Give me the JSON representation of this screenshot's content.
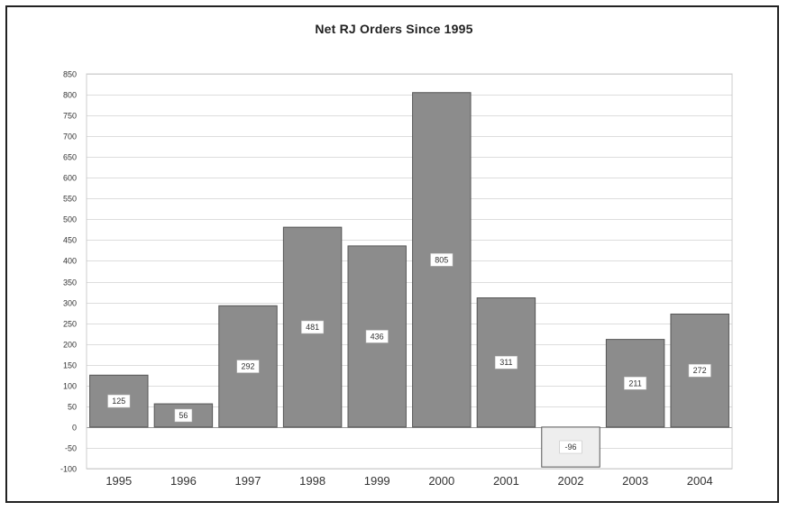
{
  "chart_data": {
    "type": "bar",
    "title": "Net RJ Orders Since 1995",
    "xlabel": "",
    "ylabel": "",
    "categories": [
      "1995",
      "1996",
      "1997",
      "1998",
      "1999",
      "2000",
      "2001",
      "2002",
      "2003",
      "2004"
    ],
    "values": [
      125,
      56,
      292,
      481,
      436,
      805,
      311,
      -96,
      211,
      272
    ],
    "data_labels": [
      "125",
      "56",
      "292",
      "481",
      "436",
      "805",
      "311",
      "-96",
      "211",
      "272"
    ],
    "ylim": [
      -100,
      850
    ],
    "yticks": [
      -100,
      -50,
      0,
      50,
      100,
      150,
      200,
      250,
      300,
      350,
      400,
      450,
      500,
      550,
      600,
      650,
      700,
      750,
      800,
      850
    ],
    "grid": true,
    "legend": "none",
    "colors": {
      "bar": "#8c8c8c",
      "bar_negative": "#eeeeee",
      "bar_stroke": "#555555",
      "grid": "#dddddd"
    }
  }
}
